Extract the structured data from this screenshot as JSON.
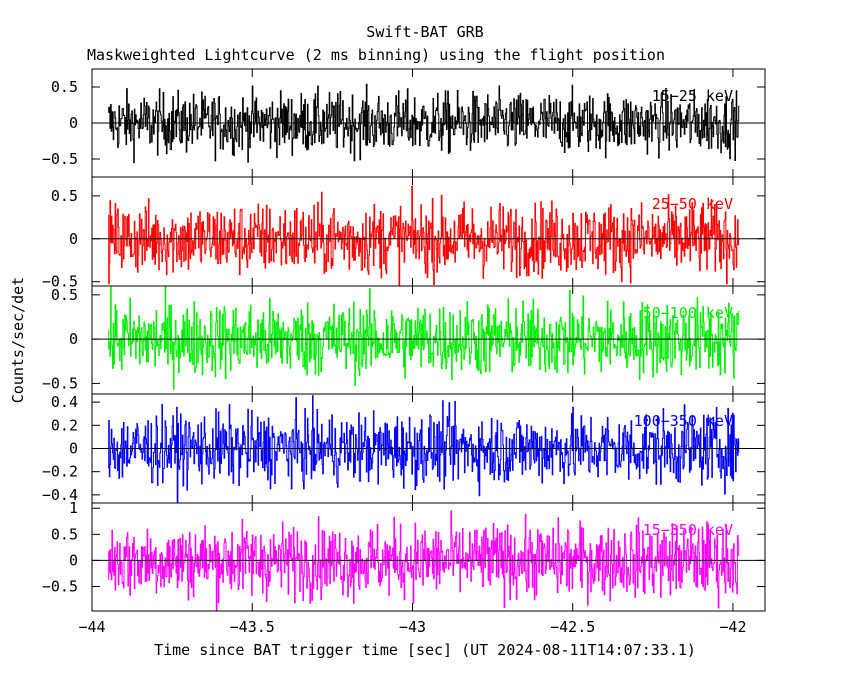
{
  "title": "Swift-BAT GRB",
  "subtitle": "Maskweighted Lightcurve (2 ms binning) using the flight position",
  "chart_data": {
    "type": "line",
    "xlabel": "Time since BAT trigger time [sec] (UT 2024-08-11T14:07:33.1)",
    "ylabel": "Counts/sec/det",
    "xlim": [
      -44,
      -41.9
    ],
    "x_ticks": [
      -44,
      -43.5,
      -43,
      -42.5,
      -42
    ],
    "x_tick_labels": [
      "−44",
      "−43.5",
      "−43",
      "−42.5",
      "−42"
    ],
    "x_range": [
      -43.95,
      -41.98
    ],
    "bin_width": 0.002,
    "panels": [
      {
        "band": "15−25 keV",
        "color": "#000000",
        "ylim": [
          -0.75,
          0.75
        ],
        "amplitude": 0.3,
        "y_ticks": [
          0.5,
          0,
          -0.5
        ],
        "y_tick_labels": [
          "0.5",
          "0",
          "−0.5"
        ]
      },
      {
        "band": "25−50 keV",
        "color": "#ff0000",
        "ylim": [
          -0.55,
          0.72
        ],
        "amplitude": 0.3,
        "y_ticks": [
          0.5,
          0,
          -0.5
        ],
        "y_tick_labels": [
          "0.5",
          "0",
          "−0.5"
        ]
      },
      {
        "band": "50−100 keV",
        "color": "#00ee00",
        "ylim": [
          -0.62,
          0.6
        ],
        "amplitude": 0.3,
        "y_ticks": [
          0.5,
          0,
          -0.5
        ],
        "y_tick_labels": [
          "0.5",
          "0",
          "−0.5"
        ]
      },
      {
        "band": "100−350 keV",
        "color": "#0000ff",
        "ylim": [
          -0.47,
          0.47
        ],
        "amplitude": 0.22,
        "y_ticks": [
          0.4,
          0.2,
          0,
          -0.2,
          -0.4
        ],
        "y_tick_labels": [
          "0.4",
          "0.2",
          "0",
          "−0.2",
          "−0.4"
        ]
      },
      {
        "band": "15−350 keV",
        "color": "#ff00ff",
        "ylim": [
          -0.97,
          1.1
        ],
        "amplitude": 0.5,
        "y_ticks": [
          1,
          0.5,
          0,
          -0.5
        ],
        "y_tick_labels": [
          "1",
          "0.5",
          "0",
          "−0.5"
        ]
      }
    ]
  }
}
